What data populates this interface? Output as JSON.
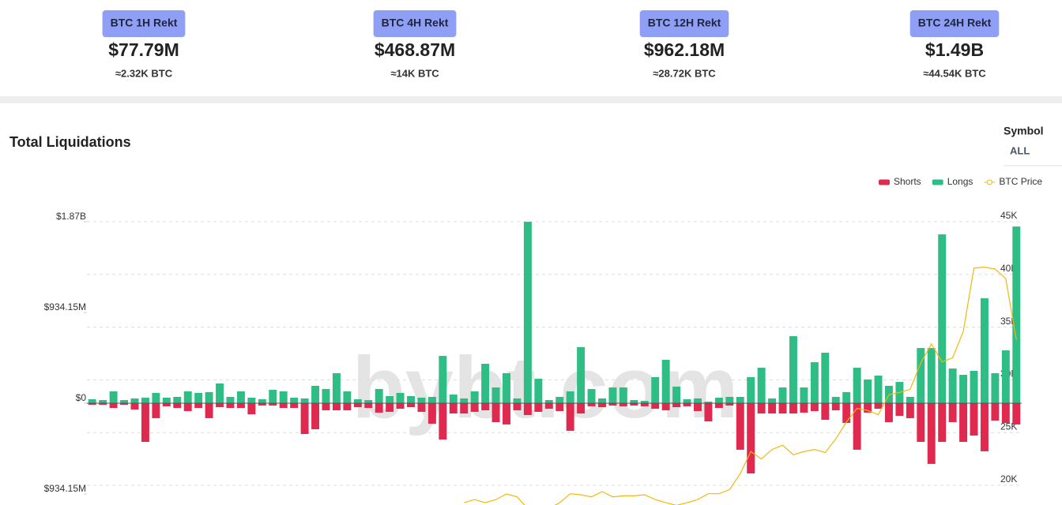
{
  "cards": [
    {
      "label": "BTC 1H Rekt",
      "value": "$77.79M",
      "sub": "≈2.32K BTC"
    },
    {
      "label": "BTC 4H Rekt",
      "value": "$468.87M",
      "sub": "≈14K BTC"
    },
    {
      "label": "BTC 12H Rekt",
      "value": "$962.18M",
      "sub": "≈28.72K BTC"
    },
    {
      "label": "BTC 24H Rekt",
      "value": "$1.49B",
      "sub": "≈44.54K BTC"
    }
  ],
  "controls": {
    "label": "Symbol",
    "value": "ALL"
  },
  "chart_data": {
    "type": "bar",
    "title": "Total Liquidations",
    "watermark": "bybt.com",
    "legend": "top-right",
    "grid": true,
    "ylim": [
      -1048,
      1868.3
    ],
    "yticks": [
      {
        "value": 1868.3,
        "label": "$1.87B"
      },
      {
        "value": 934.15,
        "label": "$934.15M"
      },
      {
        "value": 0,
        "label": "$0"
      },
      {
        "value": -934.15,
        "label": "$934.15M"
      }
    ],
    "y2lim": [
      18130,
      45000
    ],
    "y2ticks": [
      {
        "value": 45000,
        "label": "45K"
      },
      {
        "value": 40000,
        "label": "40K"
      },
      {
        "value": 35000,
        "label": "35K"
      },
      {
        "value": 30000,
        "label": "30K"
      },
      {
        "value": 25000,
        "label": "25K"
      },
      {
        "value": 20000,
        "label": "20K"
      }
    ],
    "series": [
      {
        "name": "Shorts",
        "type": "bar",
        "color": "#e0294f",
        "values": [
          -16,
          -16,
          -49,
          -16,
          -65,
          -398,
          -154,
          -32,
          -49,
          -81,
          -49,
          -154,
          -41,
          -49,
          -49,
          -114,
          -24,
          -24,
          -49,
          -49,
          -317,
          -268,
          -73,
          -73,
          -73,
          -41,
          -49,
          -97,
          -89,
          -57,
          -41,
          -89,
          -211,
          -374,
          -106,
          -106,
          -89,
          -73,
          -195,
          -219,
          -73,
          -122,
          -89,
          -57,
          -81,
          -284,
          -106,
          -32,
          -41,
          -24,
          -32,
          -24,
          -32,
          -57,
          -73,
          -41,
          -32,
          -81,
          -187,
          -49,
          -24,
          -479,
          -723,
          -106,
          -106,
          -106,
          -106,
          -97,
          -81,
          -171,
          -73,
          -203,
          -479,
          -97,
          -57,
          -195,
          -130,
          -154,
          -398,
          -625,
          -398,
          -195,
          -398,
          -333,
          -495,
          -179,
          -203,
          -219
        ]
      },
      {
        "name": "Longs",
        "type": "bar",
        "color": "#2ebd85",
        "values": [
          41,
          32,
          122,
          32,
          49,
          57,
          106,
          57,
          65,
          122,
          106,
          114,
          203,
          65,
          122,
          57,
          41,
          138,
          122,
          57,
          49,
          179,
          146,
          309,
          122,
          41,
          32,
          146,
          73,
          106,
          73,
          57,
          65,
          487,
          89,
          49,
          122,
          406,
          162,
          309,
          49,
          1868,
          252,
          32,
          65,
          122,
          577,
          146,
          49,
          162,
          162,
          32,
          24,
          268,
          447,
          171,
          41,
          49,
          16,
          57,
          65,
          65,
          268,
          365,
          49,
          162,
          690,
          162,
          422,
          520,
          65,
          114,
          365,
          244,
          284,
          179,
          219,
          65,
          568,
          568,
          1738,
          357,
          292,
          333,
          1080,
          309,
          544,
          1819
        ]
      },
      {
        "name": "BTC Price",
        "type": "line",
        "axis": "y2",
        "color": "#f0b90b",
        "values": [
          null,
          null,
          null,
          null,
          null,
          null,
          null,
          null,
          null,
          null,
          null,
          null,
          null,
          null,
          null,
          null,
          null,
          null,
          null,
          null,
          null,
          null,
          null,
          null,
          null,
          null,
          null,
          null,
          null,
          null,
          null,
          null,
          null,
          null,
          null,
          18350,
          18650,
          18350,
          18650,
          19180,
          18900,
          17800,
          17400,
          17800,
          18350,
          19200,
          19100,
          18900,
          19400,
          18900,
          19000,
          19000,
          19100,
          18650,
          18350,
          18100,
          18350,
          18650,
          19200,
          19200,
          19600,
          21100,
          23200,
          22500,
          23400,
          23800,
          22900,
          23200,
          23400,
          23100,
          24400,
          26000,
          27300,
          27100,
          26700,
          28600,
          28800,
          29100,
          31600,
          33400,
          31700,
          32100,
          34600,
          40600,
          40700,
          40500,
          39600,
          33800
        ]
      }
    ]
  }
}
